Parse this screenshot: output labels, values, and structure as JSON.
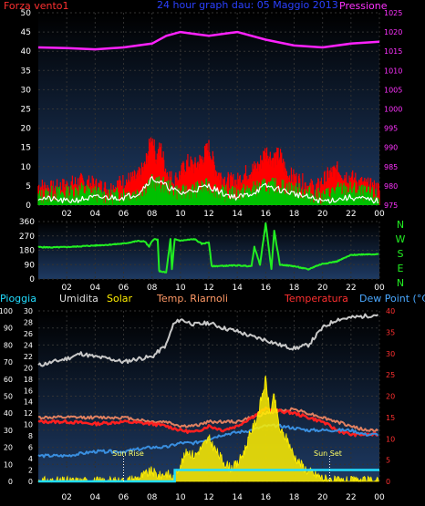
{
  "chart_data": [
    {
      "type": "line",
      "title": "24 hour graph dau: 05 Maggio 2013",
      "left_label": "Forza vento1",
      "right_label": "Pressione",
      "x_ticks": [
        "02",
        "04",
        "06",
        "08",
        "10",
        "12",
        "14",
        "16",
        "18",
        "20",
        "22",
        "00"
      ],
      "ylim_left": [
        0,
        50
      ],
      "left_ticks": [
        "0",
        "5",
        "10",
        "15",
        "20",
        "25",
        "30",
        "35",
        "40",
        "45",
        "50"
      ],
      "ylim_right": [
        975,
        1025
      ],
      "right_ticks": [
        "975",
        "980",
        "985",
        "990",
        "995",
        "1000",
        "1005",
        "1010",
        "1015",
        "1020",
        "1025"
      ],
      "grid": true,
      "series": [
        {
          "color": "#ff22ff",
          "axis": "right",
          "x": [
            0,
            2,
            4,
            6,
            8,
            9,
            10,
            11,
            12,
            14,
            16,
            18,
            20,
            22,
            24
          ],
          "values": [
            1016,
            1015.8,
            1015.5,
            1016,
            1017,
            1019,
            1020,
            1019.5,
            1019,
            1020,
            1018,
            1016.5,
            1016,
            1017,
            1017.5
          ]
        },
        {
          "color": "#ff0000",
          "axis": "left",
          "kind": "gust",
          "x": [
            0,
            1,
            2,
            3,
            4,
            5,
            6,
            7,
            7.5,
            8,
            8.3,
            8.6,
            9,
            9.5,
            10,
            10.5,
            11,
            11.5,
            12,
            12.5,
            13,
            13.5,
            14,
            14.5,
            15,
            15.5,
            16,
            16.5,
            17,
            17.5,
            18,
            18.5,
            19,
            19.5,
            20,
            20.5,
            21,
            22,
            23,
            24
          ],
          "values": [
            5,
            4,
            5,
            6,
            5,
            4,
            6,
            7,
            10,
            18,
            12,
            15,
            9,
            6,
            8,
            11,
            10,
            12,
            15,
            9,
            7,
            6,
            6,
            8,
            9,
            10,
            14,
            12,
            13,
            8,
            7,
            6,
            5,
            4,
            6,
            8,
            9,
            7,
            5,
            4
          ]
        },
        {
          "color": "#00c000",
          "axis": "left",
          "kind": "avg",
          "x": [
            0,
            1,
            2,
            3,
            4,
            5,
            6,
            7,
            8,
            9,
            10,
            11,
            12,
            13,
            14,
            15,
            16,
            17,
            18,
            19,
            20,
            21,
            22,
            23,
            24
          ],
          "values": [
            2,
            3,
            3,
            4,
            3,
            2,
            3,
            3,
            6,
            5,
            3,
            4,
            5,
            3,
            3,
            4,
            5,
            5,
            4,
            3,
            2,
            4,
            4,
            3,
            2
          ]
        },
        {
          "color": "#ffffff",
          "axis": "left",
          "kind": "mean",
          "x": [
            0,
            2,
            4,
            6,
            7,
            8,
            9,
            10,
            11,
            12,
            13,
            14,
            15,
            16,
            17,
            18,
            19,
            20,
            22,
            24
          ],
          "values": [
            2,
            1,
            2,
            2,
            3,
            7,
            5,
            3,
            4,
            5,
            3,
            2,
            3,
            5,
            4,
            3,
            2,
            1,
            2,
            1
          ]
        }
      ]
    },
    {
      "type": "line",
      "left_ticks": [
        "0",
        "90",
        "180",
        "270",
        "360"
      ],
      "ylim": [
        0,
        360
      ],
      "right_letters": [
        "N",
        "W",
        "S",
        "E",
        "N"
      ],
      "x_ticks": [
        "02",
        "04",
        "06",
        "08",
        "10",
        "12",
        "14",
        "16",
        "18",
        "20",
        "22",
        "00"
      ],
      "series": [
        {
          "color": "#22ee22",
          "x": [
            0,
            1,
            2,
            3,
            4,
            5,
            6,
            6.5,
            7,
            7.5,
            7.8,
            8.0,
            8.2,
            8.4,
            8.5,
            9,
            9.3,
            9.4,
            9.6,
            10,
            11,
            11.5,
            12,
            12.2,
            14,
            15,
            15.2,
            15.6,
            16,
            16.4,
            16.6,
            17,
            18,
            19,
            19.5,
            20,
            21,
            22,
            23,
            24
          ],
          "values": [
            200,
            198,
            200,
            205,
            210,
            215,
            222,
            230,
            238,
            235,
            200,
            240,
            250,
            245,
            50,
            40,
            250,
            60,
            250,
            240,
            250,
            220,
            230,
            80,
            85,
            80,
            200,
            90,
            350,
            60,
            300,
            90,
            80,
            60,
            80,
            95,
            110,
            150,
            155,
            155
          ]
        }
      ]
    },
    {
      "type": "line",
      "legend": [
        "Pioggia",
        "Umidita",
        "Solar",
        "Temp. Riarnoli",
        "Temperatura",
        "Dew Point (°C)"
      ],
      "left_ticks": [
        "0",
        "10",
        "20",
        "30",
        "40",
        "50",
        "60",
        "70",
        "80",
        "90",
        "100"
      ],
      "ylim_left": [
        0,
        100
      ],
      "left2_ticks": [
        "0",
        "2",
        "4",
        "6",
        "8",
        "10",
        "12",
        "14",
        "16",
        "18",
        "20",
        "22",
        "24",
        "26",
        "28",
        "30"
      ],
      "right_ticks": [
        "0",
        "5",
        "10",
        "15",
        "20",
        "25",
        "30",
        "35",
        "40"
      ],
      "ylim_right": [
        0,
        40
      ],
      "x_ticks": [
        "02",
        "04",
        "06",
        "08",
        "10",
        "12",
        "14",
        "16",
        "18",
        "20",
        "22",
        "00"
      ],
      "annotations": [
        "Sun Rise",
        "Sun Set"
      ],
      "series": [
        {
          "name": "Umidita",
          "color": "#c8c8c8",
          "axis": "left",
          "x": [
            0,
            1,
            2,
            3,
            4,
            5,
            6,
            7,
            8,
            9,
            9.5,
            10,
            11,
            12,
            13,
            14,
            15,
            16,
            17,
            18,
            19,
            20,
            21,
            22,
            23,
            24
          ],
          "values": [
            68,
            70,
            72,
            75,
            73,
            72,
            70,
            72,
            73,
            80,
            92,
            95,
            92,
            93,
            90,
            88,
            85,
            83,
            80,
            78,
            80,
            90,
            95,
            96,
            97,
            98
          ]
        },
        {
          "name": "Temp. Riarnoli",
          "color": "#e08060",
          "axis": "right",
          "x": [
            0,
            2,
            4,
            6,
            8,
            9,
            10,
            11,
            12,
            13,
            14,
            15,
            16,
            17,
            18,
            19,
            20,
            21,
            22,
            23,
            24
          ],
          "values": [
            15,
            15,
            15,
            15,
            14,
            14,
            13,
            13,
            14,
            14,
            14,
            15,
            16,
            16.5,
            17,
            16,
            15,
            14,
            13,
            12,
            12
          ]
        },
        {
          "name": "Temperatura",
          "color": "#ff2020",
          "axis": "right",
          "x": [
            0,
            2,
            4,
            6,
            8,
            9,
            10,
            11,
            12,
            13,
            14,
            15,
            16,
            17,
            18,
            19,
            20,
            21,
            22,
            23,
            24
          ],
          "values": [
            14,
            14,
            13.5,
            14,
            13.5,
            13,
            12,
            11.5,
            13,
            12,
            13,
            15,
            17,
            16.5,
            16,
            15,
            14,
            12,
            11,
            11,
            11
          ]
        },
        {
          "name": "Dew Point (°C)",
          "color": "#3a8fe0",
          "axis": "right",
          "x": [
            0,
            2,
            4,
            6,
            8,
            9,
            10,
            11,
            12,
            13,
            14,
            15,
            16,
            17,
            18,
            19,
            20,
            21,
            22,
            23,
            24
          ],
          "values": [
            6,
            6,
            7,
            7,
            8,
            8,
            9,
            9,
            10,
            11,
            11.5,
            12,
            13,
            13,
            12.5,
            12,
            12,
            12,
            12,
            11,
            11
          ]
        },
        {
          "name": "Solar",
          "color": "#ffee00",
          "axis": "left",
          "kind": "area",
          "x": [
            0,
            6,
            7,
            7.5,
            8,
            8.5,
            9,
            9.5,
            10,
            10.5,
            11,
            11.5,
            12,
            12.5,
            13,
            13.5,
            14,
            14.5,
            15,
            15.3,
            15.6,
            16,
            16.3,
            16.6,
            17,
            17.5,
            18,
            18.5,
            19,
            19.5,
            20,
            21,
            24
          ],
          "values": [
            0,
            0,
            2,
            4,
            6,
            3,
            5,
            2,
            10,
            18,
            15,
            20,
            25,
            18,
            12,
            8,
            10,
            18,
            30,
            35,
            45,
            60,
            40,
            50,
            30,
            25,
            15,
            10,
            6,
            4,
            2,
            0,
            0
          ]
        },
        {
          "name": "Pioggia",
          "color": "#22ddff",
          "axis": "left2",
          "kind": "step",
          "x": [
            0,
            9.5,
            9.6,
            24
          ],
          "values": [
            0,
            0,
            2,
            2
          ]
        }
      ]
    }
  ]
}
